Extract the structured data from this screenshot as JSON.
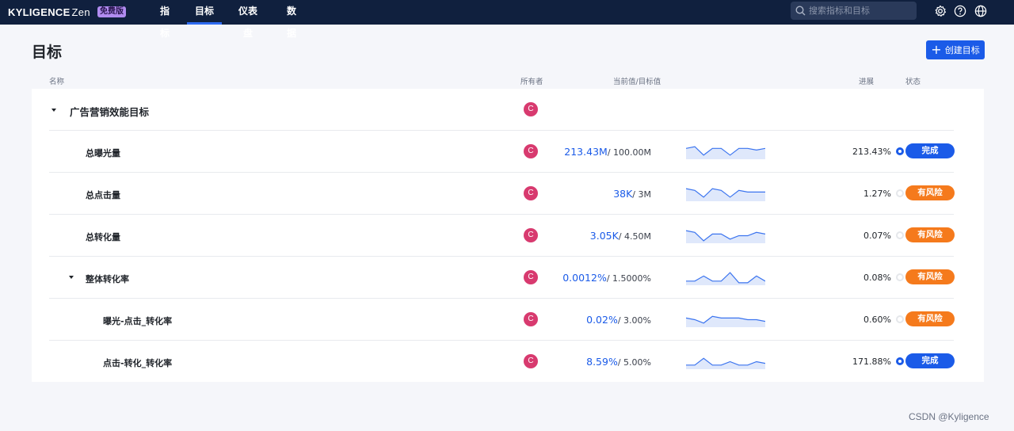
{
  "app": {
    "logo_text": "KYLIGENCE",
    "logo_suffix": "Zen",
    "edition_badge": "免费版"
  },
  "nav": [
    {
      "label": "指标",
      "active": false
    },
    {
      "label": "目标",
      "active": true
    },
    {
      "label": "仪表盘",
      "active": false
    },
    {
      "label": "数据",
      "active": false
    }
  ],
  "search": {
    "placeholder": "搜索指标和目标"
  },
  "icons": [
    "search-icon",
    "settings-icon",
    "help-icon",
    "globe-icon",
    "caret-down-icon",
    "plus-icon"
  ],
  "page": {
    "title": "目标",
    "create_button": "创建目标"
  },
  "columns": {
    "name": "名称",
    "owner": "所有者",
    "value": "当前值/目标值",
    "progress": "进展",
    "status": "状态"
  },
  "colors": {
    "topbar": "#10203e",
    "accent": "#1b5be8",
    "risk": "#f57a1c",
    "owner_avatar": "#d83a6f",
    "free_badge": "#b18cf0"
  },
  "rows": [
    {
      "name": "广告营销效能目标",
      "owner": "C",
      "expandable": true
    },
    {
      "name": "总曝光量",
      "owner": "C",
      "current": "213.43M",
      "target": "/ 100.00M",
      "progress_text": "213.43%",
      "progress": 2.1343,
      "status": "完成",
      "trend": [
        6,
        7,
        2,
        6,
        6,
        2,
        6,
        6,
        5,
        6
      ]
    },
    {
      "name": "总点击量",
      "owner": "C",
      "current": "38K",
      "target": "/ 3M",
      "progress_text": "1.27%",
      "progress": 0.0127,
      "status": "有风险",
      "trend": [
        7,
        6,
        2,
        7,
        6,
        2,
        6,
        5,
        5,
        5
      ]
    },
    {
      "name": "总转化量",
      "owner": "C",
      "current": "3.05K",
      "target": "/ 4.50M",
      "progress_text": "0.07%",
      "progress": 0.0007,
      "status": "有风险",
      "trend": [
        7,
        6,
        1,
        5,
        5,
        2,
        4,
        4,
        6,
        5
      ]
    },
    {
      "name": "整体转化率",
      "owner": "C",
      "current": "0.0012%",
      "target": "/ 1.5000%",
      "progress_text": "0.08%",
      "progress": 0.0008,
      "status": "有风险",
      "expandable": true,
      "trend": [
        2,
        2,
        5,
        2,
        2,
        7,
        1,
        1,
        5,
        2
      ]
    },
    {
      "name": "曝光-点击_转化率",
      "owner": "C",
      "current": "0.02%",
      "target": "/ 3.00%",
      "progress_text": "0.60%",
      "progress": 0.006,
      "status": "有风险",
      "trend": [
        5,
        4,
        2,
        6,
        5,
        5,
        5,
        4,
        4,
        3
      ]
    },
    {
      "name": "点击-转化_转化率",
      "owner": "C",
      "current": "8.59%",
      "target": "/ 5.00%",
      "progress_text": "171.88%",
      "progress": 1.7188,
      "status": "完成",
      "trend": [
        2,
        2,
        6,
        2,
        2,
        4,
        2,
        2,
        4,
        3
      ]
    }
  ],
  "watermark": "CSDN @Kyligence"
}
